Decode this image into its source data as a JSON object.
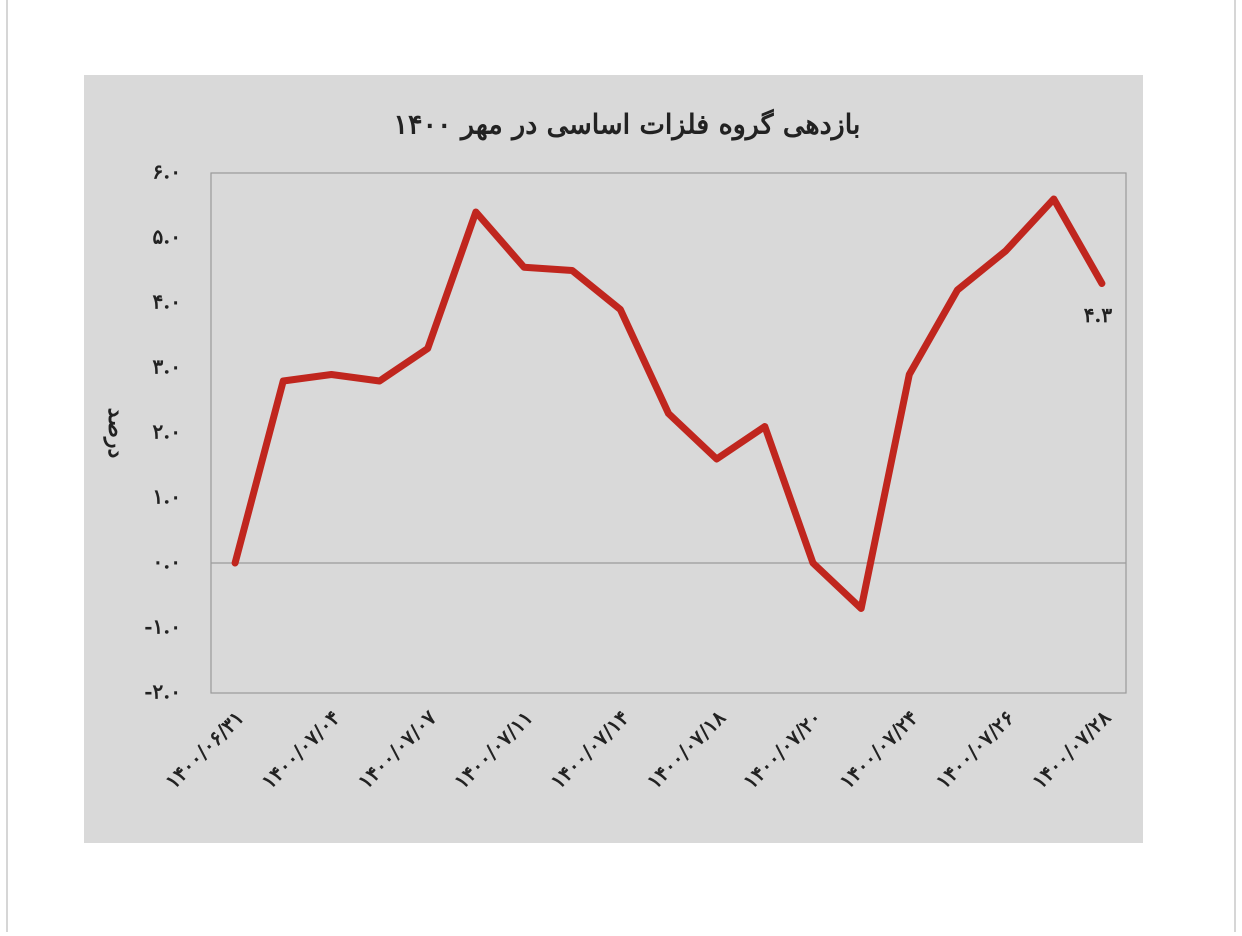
{
  "chart_data": {
    "type": "line",
    "title": "بازدهی گروه فلزات اساسی در مهر ۱۴۰۰",
    "y_label": "درصد",
    "categories": [
      "۱۴۰۰/۰۶/۳۱",
      null,
      "۱۴۰۰/۰۷/۰۴",
      null,
      "۱۴۰۰/۰۷/۰۷",
      null,
      "۱۴۰۰/۰۷/۱۱",
      null,
      "۱۴۰۰/۰۷/۱۴",
      null,
      "۱۴۰۰/۰۷/۱۸",
      null,
      "۱۴۰۰/۰۷/۲۰",
      null,
      "۱۴۰۰/۰۷/۲۴",
      null,
      "۱۴۰۰/۰۷/۲۶",
      null,
      "۱۴۰۰/۰۷/۲۸"
    ],
    "values": [
      0.0,
      2.8,
      2.9,
      2.8,
      3.3,
      5.4,
      4.55,
      4.5,
      3.9,
      2.3,
      1.6,
      2.1,
      0.0,
      -0.7,
      2.9,
      4.2,
      4.8,
      5.6,
      4.3
    ],
    "value_labels": [
      null,
      null,
      null,
      null,
      null,
      null,
      null,
      null,
      null,
      null,
      null,
      null,
      null,
      null,
      null,
      null,
      null,
      null,
      "۴.۳"
    ],
    "color": "#c0261e",
    "ylim": [
      -2,
      6
    ],
    "yticks": [
      {
        "value": -2,
        "label": "-۲.۰"
      },
      {
        "value": -1,
        "label": "-۱.۰"
      },
      {
        "value": 0,
        "label": "۰.۰"
      },
      {
        "value": 1,
        "label": "۱.۰"
      },
      {
        "value": 2,
        "label": "۲.۰"
      },
      {
        "value": 3,
        "label": "۳.۰"
      },
      {
        "value": 4,
        "label": "۴.۰"
      },
      {
        "value": 5,
        "label": "۵.۰"
      },
      {
        "value": 6,
        "label": "۶.۰"
      }
    ],
    "grid": false
  }
}
